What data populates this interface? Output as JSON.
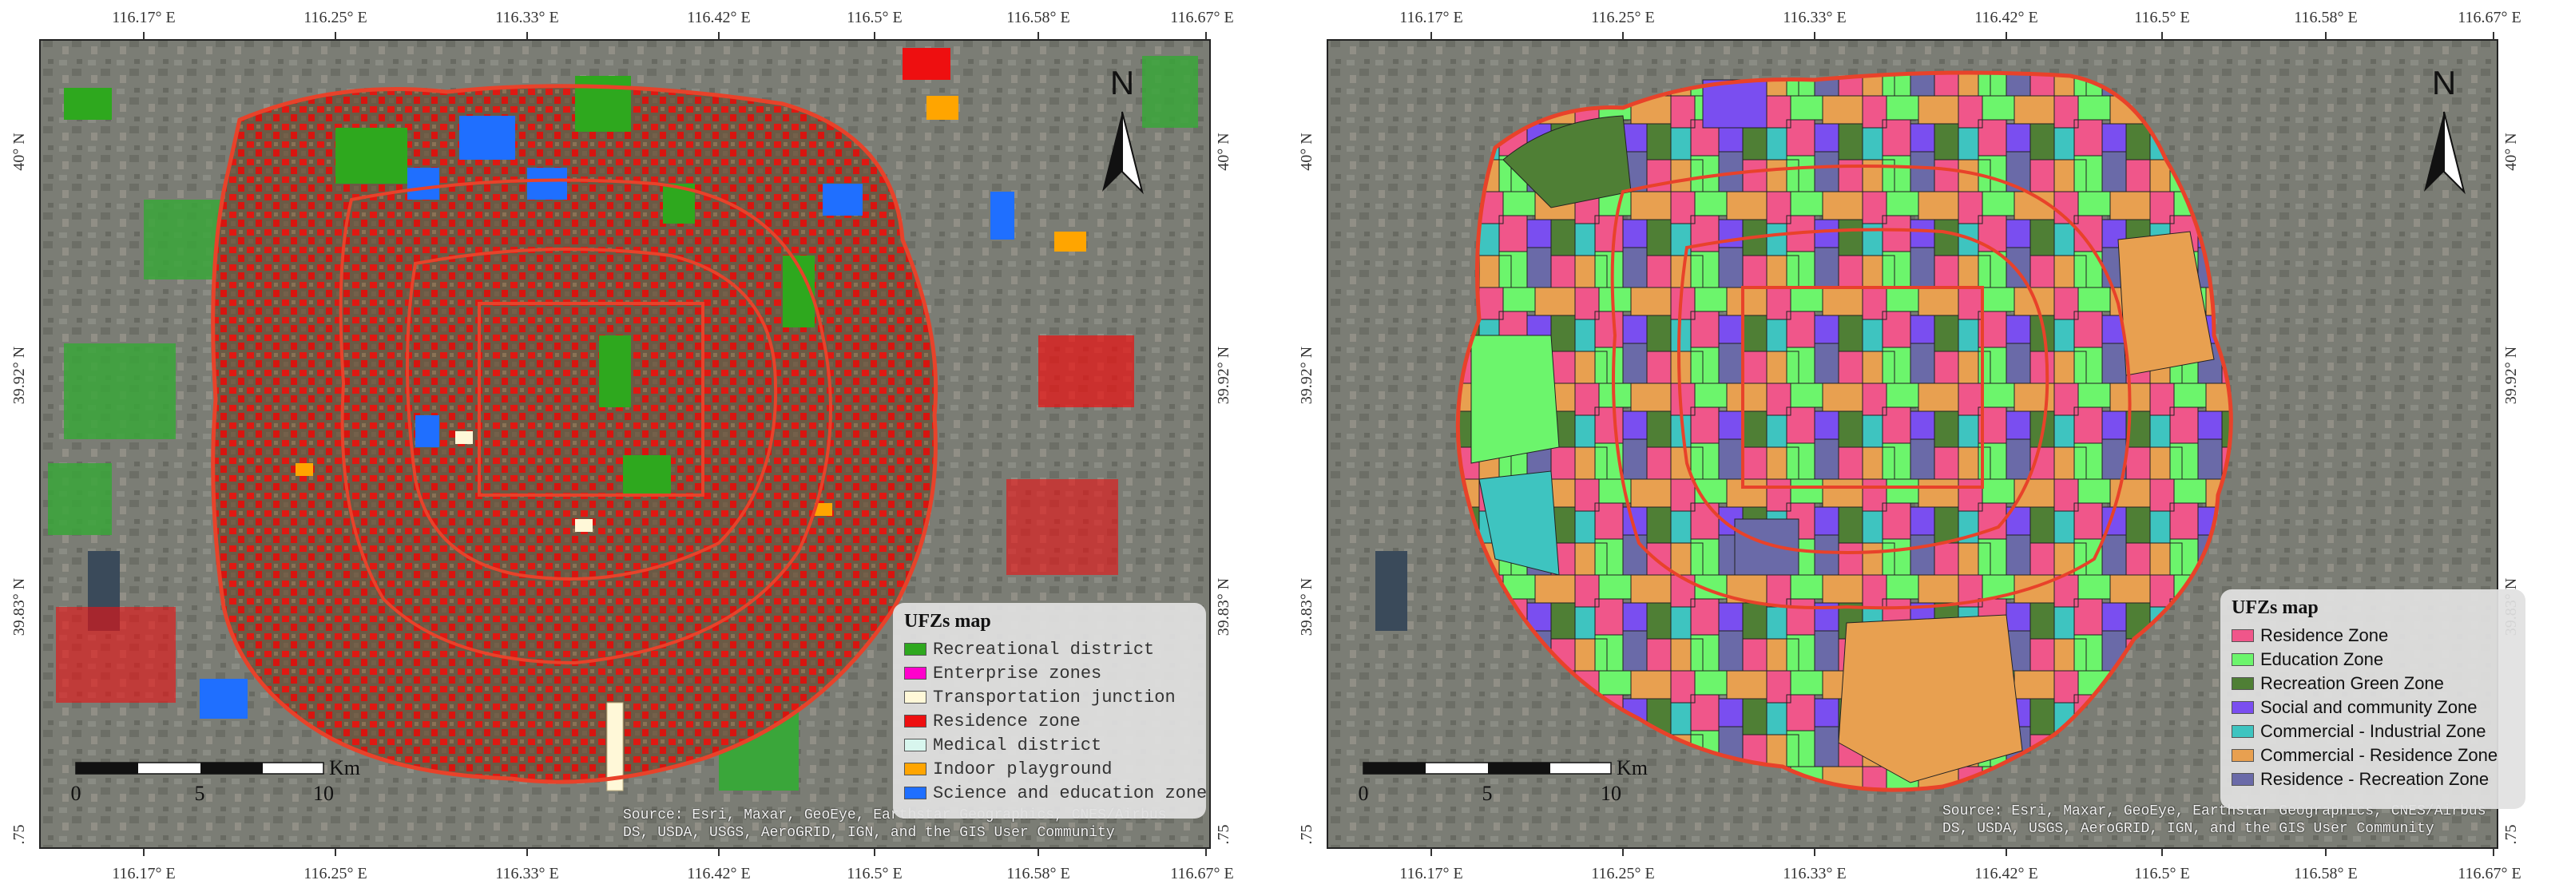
{
  "axes": {
    "top_ticks": [
      "116.17° E",
      "116.25° E",
      "116.33° E",
      "116.42° E",
      "116.5° E",
      "116.58° E",
      "116.67° E"
    ],
    "bottom_ticks": [
      "116.17° E",
      "116.25° E",
      "116.33° E",
      "116.42° E",
      "116.5° E",
      "116.58° E",
      "116.67° E"
    ],
    "lat_ticks": [
      "40° N",
      "39.92° N",
      "39.83° N",
      ".75"
    ]
  },
  "north_label": "N",
  "scale": {
    "labels": [
      "0",
      "5",
      "10"
    ],
    "unit": "Km"
  },
  "source": {
    "line1": "Source: Esri, Maxar, GeoEye, Earthstar Geographics, CNES/Airbus",
    "line2": "DS, USDA, USGS, AeroGRID, IGN, and the GIS User Community"
  },
  "left_map": {
    "legend_title": "UFZs map",
    "legend": [
      {
        "label": "Recreational district",
        "color": "#2ea81e"
      },
      {
        "label": "Enterprise zones",
        "color": "#ff00cc"
      },
      {
        "label": "Transportation junction",
        "color": "#fff8d8"
      },
      {
        "label": "Residence zone",
        "color": "#ee0f10"
      },
      {
        "label": "Medical district",
        "color": "#d8f6ee"
      },
      {
        "label": "Indoor playground",
        "color": "#ffa500"
      },
      {
        "label": "Science and education zone",
        "color": "#1f6fff"
      }
    ]
  },
  "right_map": {
    "legend_title": "UFZs map",
    "legend": [
      {
        "label": "Residence Zone",
        "color": "#f0568a"
      },
      {
        "label": "Education Zone",
        "color": "#6cf56c"
      },
      {
        "label": "Recreation Green Zone",
        "color": "#4f7f35"
      },
      {
        "label": "Social and community Zone",
        "color": "#7a4ef0"
      },
      {
        "label": "Commercial - Industrial Zone",
        "color": "#3ec4c0"
      },
      {
        "label": "Commercial - Residence Zone",
        "color": "#e8a050"
      },
      {
        "label": "Residence - Recreation Zone",
        "color": "#6a6aa8"
      }
    ]
  },
  "colors": {
    "boundary": "#e8422a",
    "satellite": "#7a7c74"
  }
}
